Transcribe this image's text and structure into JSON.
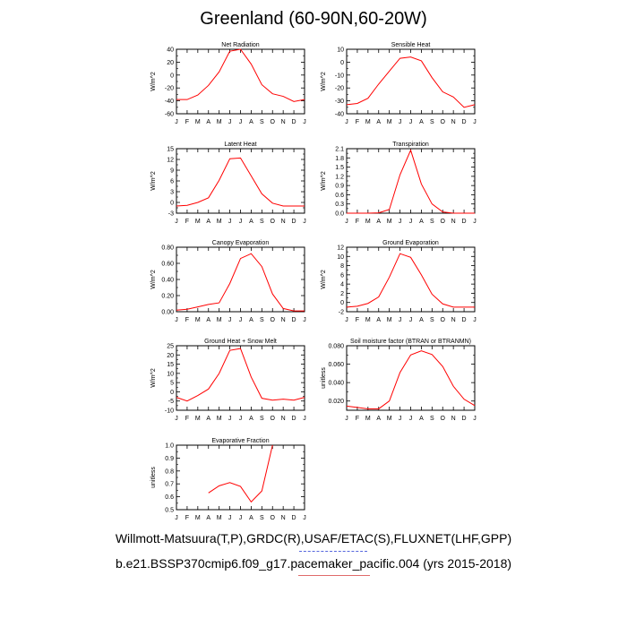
{
  "title": "Greenland (60-90N,60-20W)",
  "footer": {
    "line1": "Willmott-Matsuura(T,P),GRDC(R),USAF/ETAC(S),FLUXNET(LHF,GPP)",
    "line2": "b.e21.BSSP370cmip6.f09_g17.pacemaker_pacific.004 (yrs 2015-2018)"
  },
  "colors": {
    "series": "#ff0000",
    "axis": "#000000"
  },
  "chart_data": [
    {
      "type": "line",
      "title": "Net Radiation",
      "ylabel": "W/m^2",
      "categories": [
        "J",
        "F",
        "M",
        "A",
        "M",
        "J",
        "J",
        "A",
        "S",
        "O",
        "N",
        "D",
        "J"
      ],
      "ylim": [
        -60,
        40
      ],
      "yticks": [
        -60,
        -40,
        -20,
        0,
        20,
        40
      ],
      "yticklabels": [
        "-60",
        "-40",
        "-20",
        "0",
        "20",
        "40"
      ],
      "values": [
        -38,
        -38,
        -31,
        -16,
        5,
        37,
        40,
        17,
        -15,
        -29,
        -33,
        -41,
        -38
      ]
    },
    {
      "type": "line",
      "title": "Sensible Heat",
      "ylabel": "W/m^2",
      "categories": [
        "J",
        "F",
        "M",
        "A",
        "M",
        "J",
        "J",
        "A",
        "S",
        "O",
        "N",
        "D",
        "J"
      ],
      "ylim": [
        -40,
        10
      ],
      "yticks": [
        -40,
        -30,
        -20,
        -10,
        0,
        10
      ],
      "yticklabels": [
        "-40",
        "-30",
        "-20",
        "-10",
        "0",
        "10"
      ],
      "values": [
        -33,
        -32,
        -28,
        -17,
        -7,
        3,
        4,
        1,
        -12,
        -23,
        -27,
        -35,
        -33
      ]
    },
    {
      "type": "line",
      "title": "Latent Heat",
      "ylabel": "W/m^2",
      "categories": [
        "J",
        "F",
        "M",
        "A",
        "M",
        "J",
        "J",
        "A",
        "S",
        "O",
        "N",
        "D",
        "J"
      ],
      "ylim": [
        -3,
        15
      ],
      "yticks": [
        -3,
        0,
        3,
        6,
        9,
        12,
        15
      ],
      "yticklabels": [
        "-3",
        "0",
        "3",
        "6",
        "9",
        "12",
        "15"
      ],
      "values": [
        -1,
        -0.8,
        0,
        1.3,
        6.2,
        12.2,
        12.4,
        7.4,
        2.4,
        -0.2,
        -1,
        -1,
        -1
      ]
    },
    {
      "type": "line",
      "title": "Transpiration",
      "ylabel": "W/m^2",
      "categories": [
        "J",
        "F",
        "M",
        "A",
        "M",
        "J",
        "J",
        "A",
        "S",
        "O",
        "N",
        "D",
        "J"
      ],
      "ylim": [
        0,
        2.1
      ],
      "yticks": [
        0,
        0.3,
        0.6,
        0.9,
        1.2,
        1.5,
        1.8,
        2.1
      ],
      "yticklabels": [
        "0.0",
        "0.3",
        "0.6",
        "0.9",
        "1.2",
        "1.5",
        "1.8",
        "2.1"
      ],
      "values": [
        0,
        0,
        0,
        0.01,
        0.12,
        1.25,
        2.05,
        0.95,
        0.3,
        0.04,
        0,
        0,
        0
      ]
    },
    {
      "type": "line",
      "title": "Canopy Evaporation",
      "ylabel": "W/m^2",
      "categories": [
        "J",
        "F",
        "M",
        "A",
        "M",
        "J",
        "J",
        "A",
        "S",
        "O",
        "N",
        "D",
        "J"
      ],
      "ylim": [
        0,
        0.8
      ],
      "yticks": [
        0,
        0.2,
        0.4,
        0.6,
        0.8
      ],
      "yticklabels": [
        "0.00",
        "0.20",
        "0.40",
        "0.60",
        "0.80"
      ],
      "values": [
        0.02,
        0.03,
        0.06,
        0.09,
        0.11,
        0.35,
        0.66,
        0.72,
        0.56,
        0.22,
        0.04,
        0.01,
        0.01
      ]
    },
    {
      "type": "line",
      "title": "Ground Evaporation",
      "ylabel": "W/m^2",
      "categories": [
        "J",
        "F",
        "M",
        "A",
        "M",
        "J",
        "J",
        "A",
        "S",
        "O",
        "N",
        "D",
        "J"
      ],
      "ylim": [
        -2,
        12
      ],
      "yticks": [
        -2,
        0,
        2,
        4,
        6,
        8,
        10,
        12
      ],
      "yticklabels": [
        "-2",
        "0",
        "2",
        "4",
        "6",
        "8",
        "10",
        "12"
      ],
      "values": [
        -1,
        -0.8,
        -0.2,
        1.2,
        5.5,
        10.6,
        9.8,
        6,
        1.8,
        -0.3,
        -1,
        -1,
        -1
      ]
    },
    {
      "type": "line",
      "title": "Ground Heat + Snow Melt",
      "ylabel": "W/m^2",
      "categories": [
        "J",
        "F",
        "M",
        "A",
        "M",
        "J",
        "J",
        "A",
        "S",
        "O",
        "N",
        "D",
        "J"
      ],
      "ylim": [
        -10,
        25
      ],
      "yticks": [
        -10,
        -5,
        0,
        5,
        10,
        15,
        20,
        25
      ],
      "yticklabels": [
        "-10",
        "-5",
        "0",
        "5",
        "10",
        "15",
        "20",
        "25"
      ],
      "values": [
        -3,
        -5,
        -2,
        1.5,
        10,
        22.5,
        23.5,
        8,
        -3.5,
        -4.5,
        -4,
        -4.5,
        -3
      ]
    },
    {
      "type": "line",
      "title": "Soil moisture factor (BTRAN or BTRANMN)",
      "ylabel": "unitless",
      "categories": [
        "J",
        "F",
        "M",
        "A",
        "M",
        "J",
        "J",
        "A",
        "S",
        "O",
        "N",
        "D",
        "J"
      ],
      "ylim": [
        0.01,
        0.08
      ],
      "yticks": [
        0.02,
        0.04,
        0.06,
        0.08
      ],
      "yticklabels": [
        "0.020",
        "0.040",
        "0.060",
        "0.080"
      ],
      "values": [
        0.0145,
        0.013,
        0.0115,
        0.0115,
        0.02,
        0.051,
        0.07,
        0.0745,
        0.0705,
        0.0575,
        0.036,
        0.022,
        0.015
      ]
    },
    {
      "type": "line",
      "title": "Evaporative Fraction",
      "ylabel": "unitless",
      "categories": [
        "J",
        "F",
        "M",
        "A",
        "M",
        "J",
        "J",
        "A",
        "S",
        "O",
        "N",
        "D",
        "J"
      ],
      "ylim": [
        0.5,
        1.0
      ],
      "yticks": [
        0.5,
        0.6,
        0.7,
        0.8,
        0.9,
        1.0
      ],
      "yticklabels": [
        "0.5",
        "0.6",
        "0.7",
        "0.8",
        "0.9",
        "1.0"
      ],
      "values": [
        null,
        null,
        null,
        0.63,
        0.685,
        0.71,
        0.68,
        0.56,
        0.645,
        1.0,
        null,
        null,
        null
      ]
    }
  ]
}
